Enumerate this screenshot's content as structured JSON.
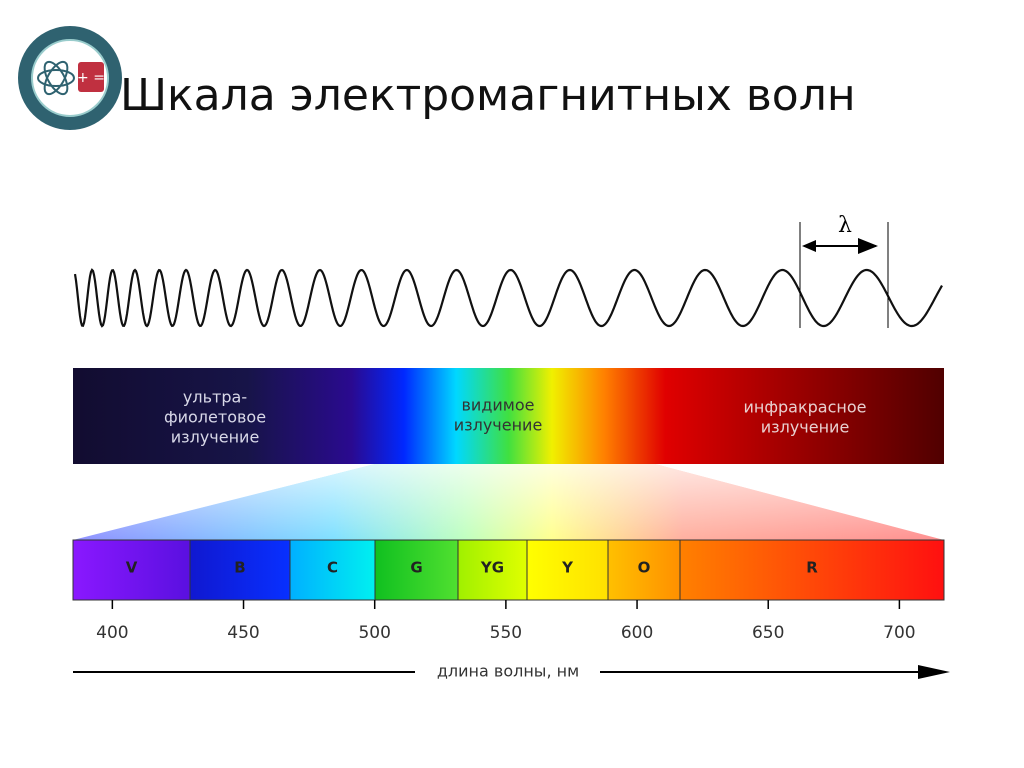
{
  "title": "Шкала электромагнитных волн",
  "wave": {
    "lambda": "λ"
  },
  "spectrum": {
    "ultraviolet": [
      "ультра-",
      "фиолетовое",
      "излучение"
    ],
    "visible": [
      "видимое",
      "излучение"
    ],
    "infrared": [
      "инфракрасное",
      "излучение"
    ]
  },
  "bands": [
    "V",
    "B",
    "C",
    "G",
    "YG",
    "Y",
    "O",
    "R"
  ],
  "scale": {
    "xlim": [
      385,
      717
    ],
    "ticks": [
      400,
      450,
      500,
      550,
      600,
      650,
      700
    ],
    "label": "длина волны, нм"
  }
}
